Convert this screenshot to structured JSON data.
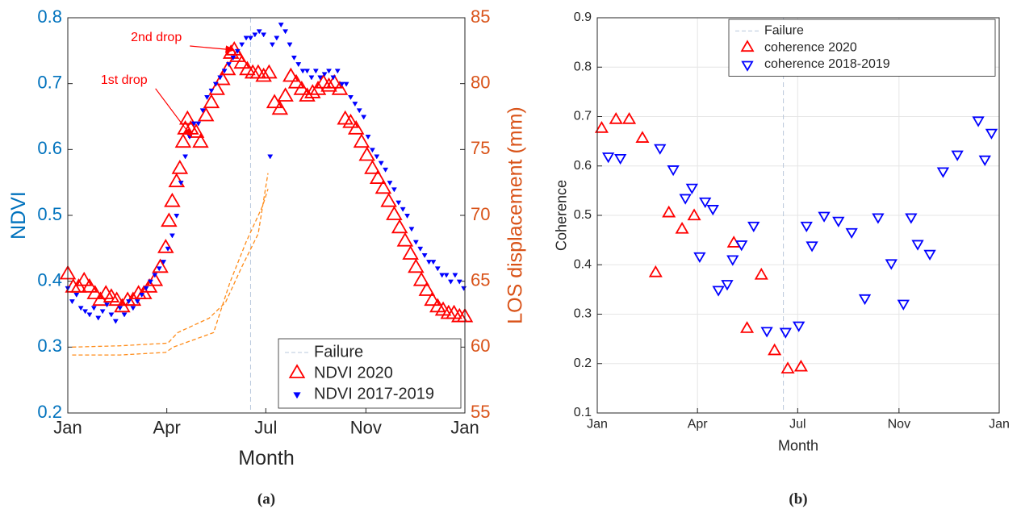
{
  "chart_data": [
    {
      "type": "scatter",
      "xlabel": "Month",
      "ylabel": "NDVI",
      "y2label": "LOS displacement (mm)",
      "caption": "(a)",
      "ycolor": "#0072bd",
      "y2color": "#d95319",
      "grid": false,
      "legend": "lower right",
      "xlim": [
        0,
        365
      ],
      "xticks": [
        {
          "value": 0,
          "label": "Jan"
        },
        {
          "value": 91,
          "label": "Apr"
        },
        {
          "value": 182,
          "label": "Jul"
        },
        {
          "value": 274,
          "label": "Nov"
        },
        {
          "value": 365,
          "label": "Jan"
        }
      ],
      "ylim": [
        0.2,
        0.8
      ],
      "yticks": [
        0.2,
        0.3,
        0.4,
        0.5,
        0.6,
        0.7,
        0.8
      ],
      "y2lim": [
        55,
        85
      ],
      "y2ticks": [
        55,
        60,
        65,
        70,
        75,
        80,
        85
      ],
      "failure": {
        "name": "Failure",
        "x": 168,
        "color": "#b8c8dc"
      },
      "annotations": [
        {
          "text": "1st drop",
          "x": 114,
          "y": 0.619,
          "color": "#ff0000"
        },
        {
          "text": "2nd drop",
          "x": 153,
          "y": 0.751,
          "color": "#ff0000"
        }
      ],
      "series": [
        {
          "name": "NDVI 2020",
          "type": "scatter",
          "marker": "up",
          "filled": false,
          "color": "#ff0000",
          "x": [
            0,
            5,
            10,
            15,
            20,
            25,
            30,
            35,
            40,
            45,
            50,
            55,
            60,
            65,
            70,
            75,
            80,
            85,
            90,
            93,
            96,
            100,
            103,
            106,
            108,
            110,
            113,
            118,
            122,
            127,
            132,
            137,
            142,
            147,
            150,
            153,
            156,
            160,
            165,
            170,
            175,
            180,
            185,
            190,
            195,
            200,
            205,
            210,
            215,
            220,
            225,
            230,
            235,
            240,
            245,
            250,
            255,
            260,
            265,
            270,
            275,
            280,
            285,
            290,
            295,
            300,
            305,
            310,
            315,
            320,
            325,
            330,
            335,
            340,
            345,
            350,
            355,
            360,
            365
          ],
          "values": [
            0.41,
            0.39,
            0.39,
            0.4,
            0.39,
            0.38,
            0.37,
            0.38,
            0.375,
            0.37,
            0.36,
            0.37,
            0.37,
            0.38,
            0.38,
            0.39,
            0.4,
            0.42,
            0.45,
            0.49,
            0.52,
            0.55,
            0.57,
            0.61,
            0.63,
            0.645,
            0.63,
            0.625,
            0.61,
            0.65,
            0.67,
            0.69,
            0.705,
            0.72,
            0.745,
            0.75,
            0.74,
            0.73,
            0.72,
            0.715,
            0.715,
            0.71,
            0.715,
            0.67,
            0.66,
            0.68,
            0.71,
            0.7,
            0.69,
            0.68,
            0.685,
            0.69,
            0.7,
            0.695,
            0.7,
            0.69,
            0.645,
            0.64,
            0.63,
            0.61,
            0.59,
            0.57,
            0.555,
            0.54,
            0.52,
            0.5,
            0.48,
            0.46,
            0.44,
            0.42,
            0.4,
            0.385,
            0.37,
            0.36,
            0.355,
            0.35,
            0.35,
            0.345,
            0.345
          ]
        },
        {
          "name": "NDVI 2017-2019",
          "type": "scatter",
          "marker": "down",
          "filled": true,
          "color": "#0000ff",
          "x": [
            0,
            4,
            8,
            12,
            16,
            20,
            24,
            28,
            32,
            36,
            40,
            44,
            48,
            52,
            56,
            60,
            64,
            68,
            72,
            76,
            80,
            84,
            88,
            92,
            96,
            100,
            104,
            108,
            112,
            116,
            120,
            124,
            128,
            132,
            136,
            140,
            144,
            148,
            152,
            156,
            160,
            164,
            168,
            172,
            176,
            180,
            186,
            188,
            192,
            196,
            200,
            204,
            208,
            212,
            216,
            220,
            224,
            228,
            232,
            236,
            240,
            244,
            248,
            252,
            256,
            260,
            264,
            268,
            272,
            276,
            280,
            284,
            288,
            292,
            296,
            300,
            304,
            308,
            312,
            316,
            320,
            324,
            328,
            332,
            336,
            340,
            344,
            348,
            352,
            356,
            360,
            364
          ],
          "values": [
            0.39,
            0.37,
            0.38,
            0.36,
            0.355,
            0.35,
            0.36,
            0.345,
            0.355,
            0.365,
            0.35,
            0.34,
            0.36,
            0.35,
            0.37,
            0.36,
            0.37,
            0.38,
            0.39,
            0.4,
            0.41,
            0.42,
            0.43,
            0.45,
            0.47,
            0.5,
            0.55,
            0.59,
            0.62,
            0.64,
            0.64,
            0.66,
            0.68,
            0.69,
            0.7,
            0.71,
            0.72,
            0.73,
            0.74,
            0.75,
            0.76,
            0.77,
            0.77,
            0.775,
            0.78,
            0.775,
            0.59,
            0.76,
            0.77,
            0.79,
            0.78,
            0.76,
            0.74,
            0.73,
            0.72,
            0.72,
            0.71,
            0.72,
            0.71,
            0.715,
            0.72,
            0.71,
            0.72,
            0.7,
            0.7,
            0.68,
            0.67,
            0.66,
            0.65,
            0.62,
            0.6,
            0.59,
            0.58,
            0.57,
            0.55,
            0.54,
            0.52,
            0.51,
            0.5,
            0.48,
            0.46,
            0.45,
            0.44,
            0.43,
            0.43,
            0.42,
            0.41,
            0.41,
            0.4,
            0.41,
            0.4,
            0.39
          ]
        },
        {
          "type": "line",
          "axis": "y2",
          "dashed": true,
          "color": "#ff8c1a",
          "x": [
            4,
            48,
            92,
            101,
            130,
            145,
            160,
            175,
            184
          ],
          "values": [
            60.0,
            60.1,
            60.3,
            61.1,
            62.2,
            63.4,
            66.1,
            68.6,
            73.2
          ]
        },
        {
          "type": "line",
          "axis": "y2",
          "dashed": true,
          "color": "#ff8c1a",
          "x": [
            4,
            48,
            90,
            97,
            134,
            149,
            164,
            179,
            184
          ],
          "values": [
            59.4,
            59.4,
            59.6,
            60.0,
            61.1,
            64.9,
            68.0,
            70.7,
            72.0
          ]
        }
      ]
    },
    {
      "type": "scatter",
      "xlabel": "Month",
      "ylabel": "Coherence",
      "caption": "(b)",
      "grid": true,
      "legend": "upper right",
      "xlim": [
        0,
        365
      ],
      "xticks": [
        {
          "value": 0,
          "label": "Jan"
        },
        {
          "value": 91,
          "label": "Apr"
        },
        {
          "value": 182,
          "label": "Jul"
        },
        {
          "value": 274,
          "label": "Nov"
        },
        {
          "value": 365,
          "label": "Jan"
        }
      ],
      "ylim": [
        0.1,
        0.9
      ],
      "yticks": [
        0.1,
        0.2,
        0.3,
        0.4,
        0.5,
        0.6,
        0.7,
        0.8,
        0.9
      ],
      "failure": {
        "name": "Failure",
        "x": 169,
        "color": "#b8c8dc"
      },
      "series": [
        {
          "name": "coherence 2020",
          "type": "scatter",
          "marker": "up",
          "filled": false,
          "color": "#ff0000",
          "x": [
            4,
            17,
            29,
            41,
            53,
            65,
            77,
            88,
            124,
            136,
            149,
            161,
            173,
            185
          ],
          "values": [
            0.675,
            0.693,
            0.693,
            0.655,
            0.383,
            0.504,
            0.471,
            0.498,
            0.443,
            0.27,
            0.378,
            0.225,
            0.188,
            0.192
          ]
        },
        {
          "name": "coherence 2018-2019",
          "type": "scatter",
          "marker": "down",
          "filled": false,
          "color": "#0000ff",
          "x": [
            10,
            21,
            57,
            69,
            80,
            86,
            93,
            98,
            105,
            110,
            118,
            123,
            131,
            142,
            154,
            171,
            183,
            190,
            195,
            206,
            219,
            231,
            243,
            255,
            267,
            278,
            285,
            291,
            302,
            314,
            327,
            346,
            352,
            358
          ],
          "values": [
            0.62,
            0.617,
            0.637,
            0.594,
            0.536,
            0.557,
            0.418,
            0.529,
            0.514,
            0.35,
            0.362,
            0.412,
            0.442,
            0.48,
            0.267,
            0.265,
            0.278,
            0.48,
            0.44,
            0.5,
            0.49,
            0.467,
            0.333,
            0.497,
            0.404,
            0.322,
            0.497,
            0.443,
            0.423,
            0.59,
            0.624,
            0.693,
            0.614,
            0.668
          ]
        }
      ]
    }
  ]
}
